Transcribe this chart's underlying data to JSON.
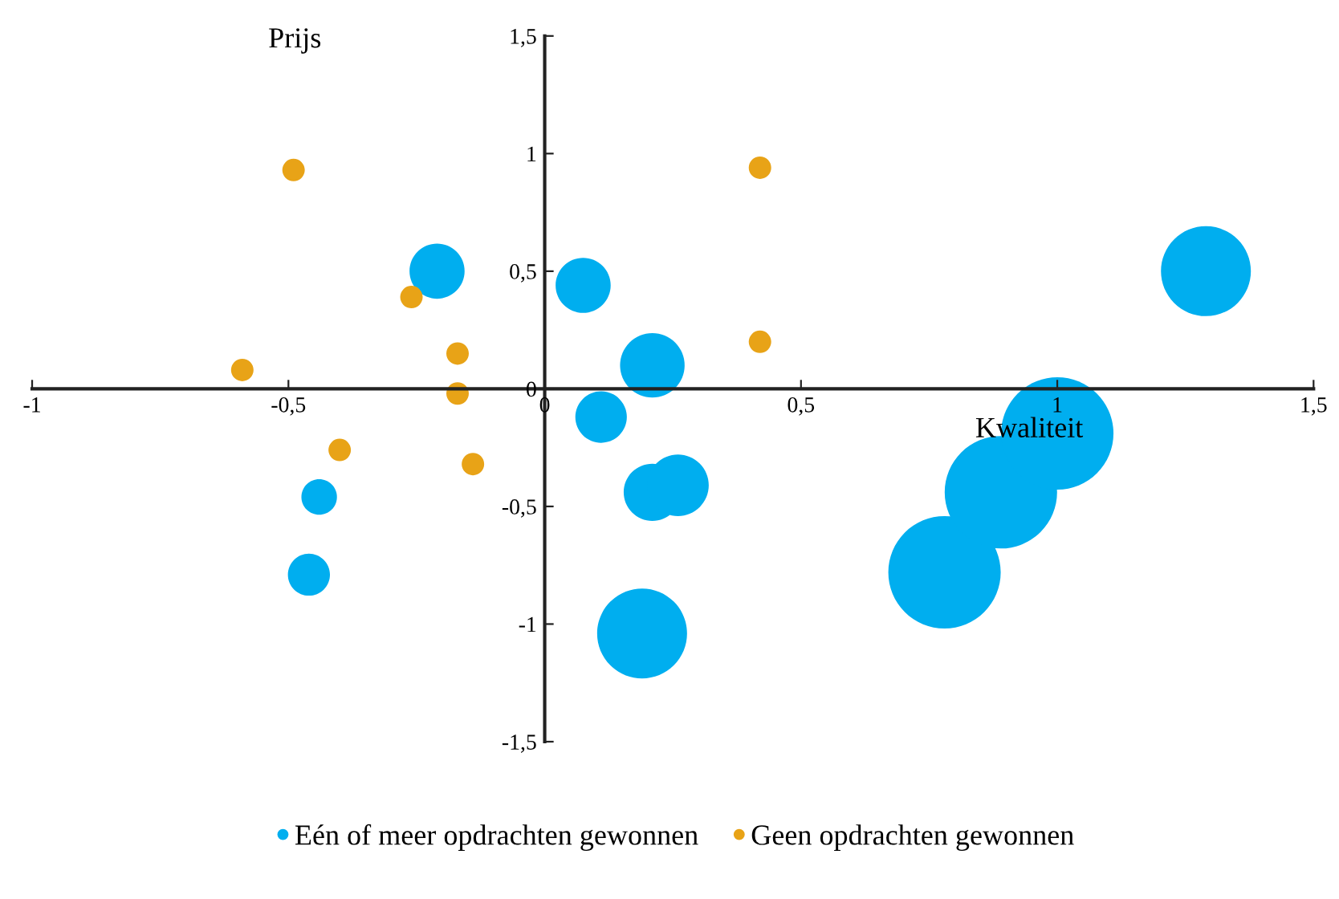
{
  "chart_data": {
    "type": "bubble",
    "xlabel": "Kwaliteit",
    "ylabel": "Prijs",
    "xlim": [
      -1,
      1.5
    ],
    "ylim": [
      -1.5,
      1.5
    ],
    "xticks": [
      {
        "value": -1,
        "label": "-1"
      },
      {
        "value": -0.5,
        "label": "-0,5"
      },
      0,
      {
        "value": 0.5,
        "label": "0,5"
      },
      1,
      {
        "value": 1.5,
        "label": "1,5"
      }
    ],
    "yticks": [
      {
        "value": -1.5,
        "label": "-1,5"
      },
      {
        "value": -1,
        "label": "-1"
      },
      {
        "value": -0.5,
        "label": "-0,5"
      },
      0,
      {
        "value": 0.5,
        "label": "0,5"
      },
      1,
      {
        "value": 1.5,
        "label": "1,5"
      }
    ],
    "legend": "bottom",
    "grid": false,
    "series": [
      {
        "name": "Eén of meer opdrachten gewonnen",
        "color": "#00aeef",
        "x": [
          -0.21,
          0.075,
          0.21,
          0.11,
          0.21,
          0.26,
          0.19,
          -0.44,
          -0.46,
          1.29,
          0.78,
          0.89,
          1.0
        ],
        "values": [
          0.5,
          0.44,
          0.1,
          -0.12,
          -0.44,
          -0.41,
          -1.04,
          -0.46,
          -0.79,
          0.5,
          -0.78,
          -0.44,
          -0.19
        ],
        "sizes": [
          0.24,
          0.24,
          0.33,
          0.21,
          0.26,
          0.3,
          0.64,
          0.1,
          0.14,
          0.64,
          1,
          1,
          1
        ]
      },
      {
        "name": "Geen opdrachten gewonnen",
        "color": "#e8a317",
        "x": [
          -0.49,
          0.42,
          -0.26,
          -0.17,
          -0.17,
          0.42,
          -0.59,
          -0.4,
          -0.14
        ],
        "values": [
          0.93,
          0.94,
          0.39,
          0.15,
          -0.02,
          0.2,
          0.08,
          -0.26,
          -0.32
        ],
        "sizes": [
          0.04,
          0.04,
          0.04,
          0.04,
          0.04,
          0.04,
          0.04,
          0.04,
          0.04
        ]
      }
    ]
  }
}
